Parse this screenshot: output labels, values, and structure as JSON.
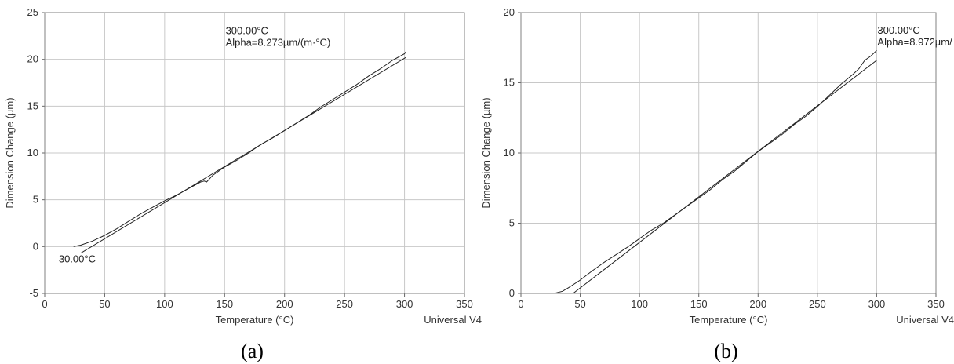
{
  "chart_data": [
    {
      "type": "line",
      "panel_label": "(a)",
      "xlabel": "Temperature (°C)",
      "ylabel": "Dimension Change (µm)",
      "xlim": [
        0,
        350
      ],
      "ylim": [
        -5,
        25
      ],
      "xticks": [
        "0",
        "50",
        "100",
        "150",
        "200",
        "250",
        "300",
        "350"
      ],
      "yticks": [
        "-5",
        "0",
        "5",
        "10",
        "15",
        "20",
        "25"
      ],
      "grid": true,
      "footer": "Universal V4",
      "series": [
        {
          "x": [
            24,
            30,
            40,
            50,
            60,
            70,
            80,
            90,
            100,
            110,
            120,
            130,
            133,
            135,
            140,
            150,
            160,
            170,
            180,
            190,
            200,
            210,
            220,
            230,
            240,
            250,
            260,
            270,
            280,
            290,
            300,
            301
          ],
          "y": [
            0.0,
            0.15,
            0.6,
            1.2,
            1.9,
            2.7,
            3.5,
            4.2,
            4.9,
            5.5,
            6.2,
            6.9,
            7.0,
            6.9,
            7.6,
            8.5,
            9.2,
            10.0,
            10.9,
            11.6,
            12.4,
            13.2,
            14.0,
            14.9,
            15.7,
            16.5,
            17.3,
            18.2,
            19.0,
            19.9,
            20.6,
            20.8
          ]
        },
        {
          "x": [
            30,
            301
          ],
          "y": [
            -0.7,
            20.2
          ]
        }
      ],
      "annotations": [
        {
          "text": "30.00°C",
          "x": 30,
          "y": -0.7
        },
        {
          "text": "300.00°C",
          "x": 300,
          "y": 20.2
        },
        {
          "text": "Alpha=8.273µm/(m·°C)",
          "x": 300,
          "y": 20.2
        }
      ]
    },
    {
      "type": "line",
      "panel_label": "(b)",
      "xlabel": "Temperature (°C)",
      "ylabel": "Dimension Change (µm)",
      "xlim": [
        0,
        350
      ],
      "ylim": [
        0,
        20
      ],
      "xticks": [
        "0",
        "50",
        "100",
        "150",
        "200",
        "250",
        "300",
        "350"
      ],
      "yticks": [
        "0",
        "5",
        "10",
        "15",
        "20"
      ],
      "grid": true,
      "footer": "Universal V4",
      "series": [
        {
          "x": [
            28,
            35,
            40,
            50,
            60,
            70,
            80,
            90,
            100,
            110,
            120,
            130,
            140,
            150,
            160,
            170,
            180,
            190,
            200,
            210,
            220,
            230,
            240,
            250,
            260,
            270,
            280,
            285,
            290,
            295,
            300
          ],
          "y": [
            0.0,
            0.15,
            0.4,
            0.95,
            1.6,
            2.2,
            2.75,
            3.3,
            3.9,
            4.5,
            5.0,
            5.6,
            6.2,
            6.8,
            7.4,
            8.1,
            8.7,
            9.4,
            10.1,
            10.7,
            11.3,
            12.0,
            12.6,
            13.3,
            14.1,
            14.9,
            15.6,
            16.0,
            16.6,
            16.9,
            17.3
          ]
        },
        {
          "x": [
            44,
            300
          ],
          "y": [
            0.0,
            16.6
          ]
        }
      ],
      "annotations": [
        {
          "text": "300.00°C",
          "x": 300,
          "y": 16.6
        },
        {
          "text": "Alpha=8.972µm/",
          "x": 300,
          "y": 16.6
        }
      ]
    }
  ]
}
